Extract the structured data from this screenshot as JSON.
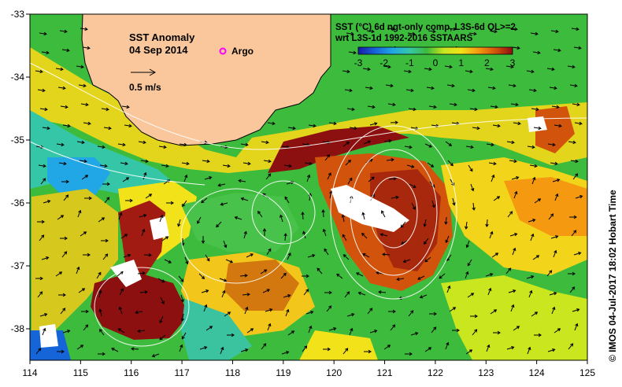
{
  "title": {
    "line1": "SST Anomaly",
    "line2": "04 Sep 2014"
  },
  "legend_argo": "Argo",
  "scale_arrow_label": "0.5 m/s",
  "header": {
    "line1": "SST (°C) 6d ngt-only comp, L3S-6d QL>=2",
    "line2": "wrt L3S-1d 1992-2016 SSTAARS"
  },
  "colorbar": {
    "ticks": [
      "-3",
      "-2",
      "-1",
      "0",
      "1",
      "2",
      "3"
    ],
    "stops": [
      "#1a1aa8",
      "#1565d8",
      "#21a6e6",
      "#35c6a8",
      "#3dbb3d",
      "#c9e61f",
      "#f2e21a",
      "#f59a10",
      "#d2540c",
      "#8c1010"
    ]
  },
  "axes": {
    "lon_ticks": [
      "114",
      "115",
      "116",
      "117",
      "118",
      "119",
      "120",
      "121",
      "122",
      "123",
      "124",
      "125"
    ],
    "lat_ticks": [
      "-33",
      "-34",
      "-35",
      "-36",
      "-37",
      "-38"
    ]
  },
  "side_label": "© IMOS 04-Jul-2017 18:02 Hobart Time",
  "colors": {
    "land": "#f9c79b",
    "argo": "#ff00ff",
    "sea_green": "#3dbb3d"
  }
}
